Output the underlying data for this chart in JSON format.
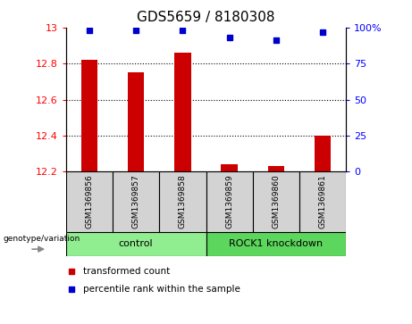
{
  "title": "GDS5659 / 8180308",
  "samples": [
    "GSM1369856",
    "GSM1369857",
    "GSM1369858",
    "GSM1369859",
    "GSM1369860",
    "GSM1369861"
  ],
  "bar_values": [
    12.82,
    12.75,
    12.86,
    12.24,
    12.23,
    12.4
  ],
  "percentile_values": [
    98,
    98,
    98,
    93,
    91,
    97
  ],
  "ylim_left": [
    12.2,
    13.0
  ],
  "ylim_right": [
    0,
    100
  ],
  "yticks_left": [
    12.2,
    12.4,
    12.6,
    12.8,
    13.0
  ],
  "ytick_labels_left": [
    "12.2",
    "12.4",
    "12.6",
    "12.8",
    "13"
  ],
  "yticks_right": [
    0,
    25,
    50,
    75,
    100
  ],
  "ytick_labels_right": [
    "0",
    "25",
    "50",
    "75",
    "100%"
  ],
  "groups": [
    {
      "label": "control",
      "span": [
        0,
        2
      ],
      "color": "#90EE90"
    },
    {
      "label": "ROCK1 knockdown",
      "span": [
        3,
        5
      ],
      "color": "#5CD65C"
    }
  ],
  "bar_color": "#cc0000",
  "dot_color": "#0000cc",
  "bg_color": "#d3d3d3",
  "legend_bar_label": "transformed count",
  "legend_dot_label": "percentile rank within the sample",
  "genotype_label": "genotype/variation",
  "title_fontsize": 11,
  "tick_fontsize": 8,
  "dotted_yticks": [
    12.4,
    12.6,
    12.8
  ],
  "bar_width": 0.35
}
